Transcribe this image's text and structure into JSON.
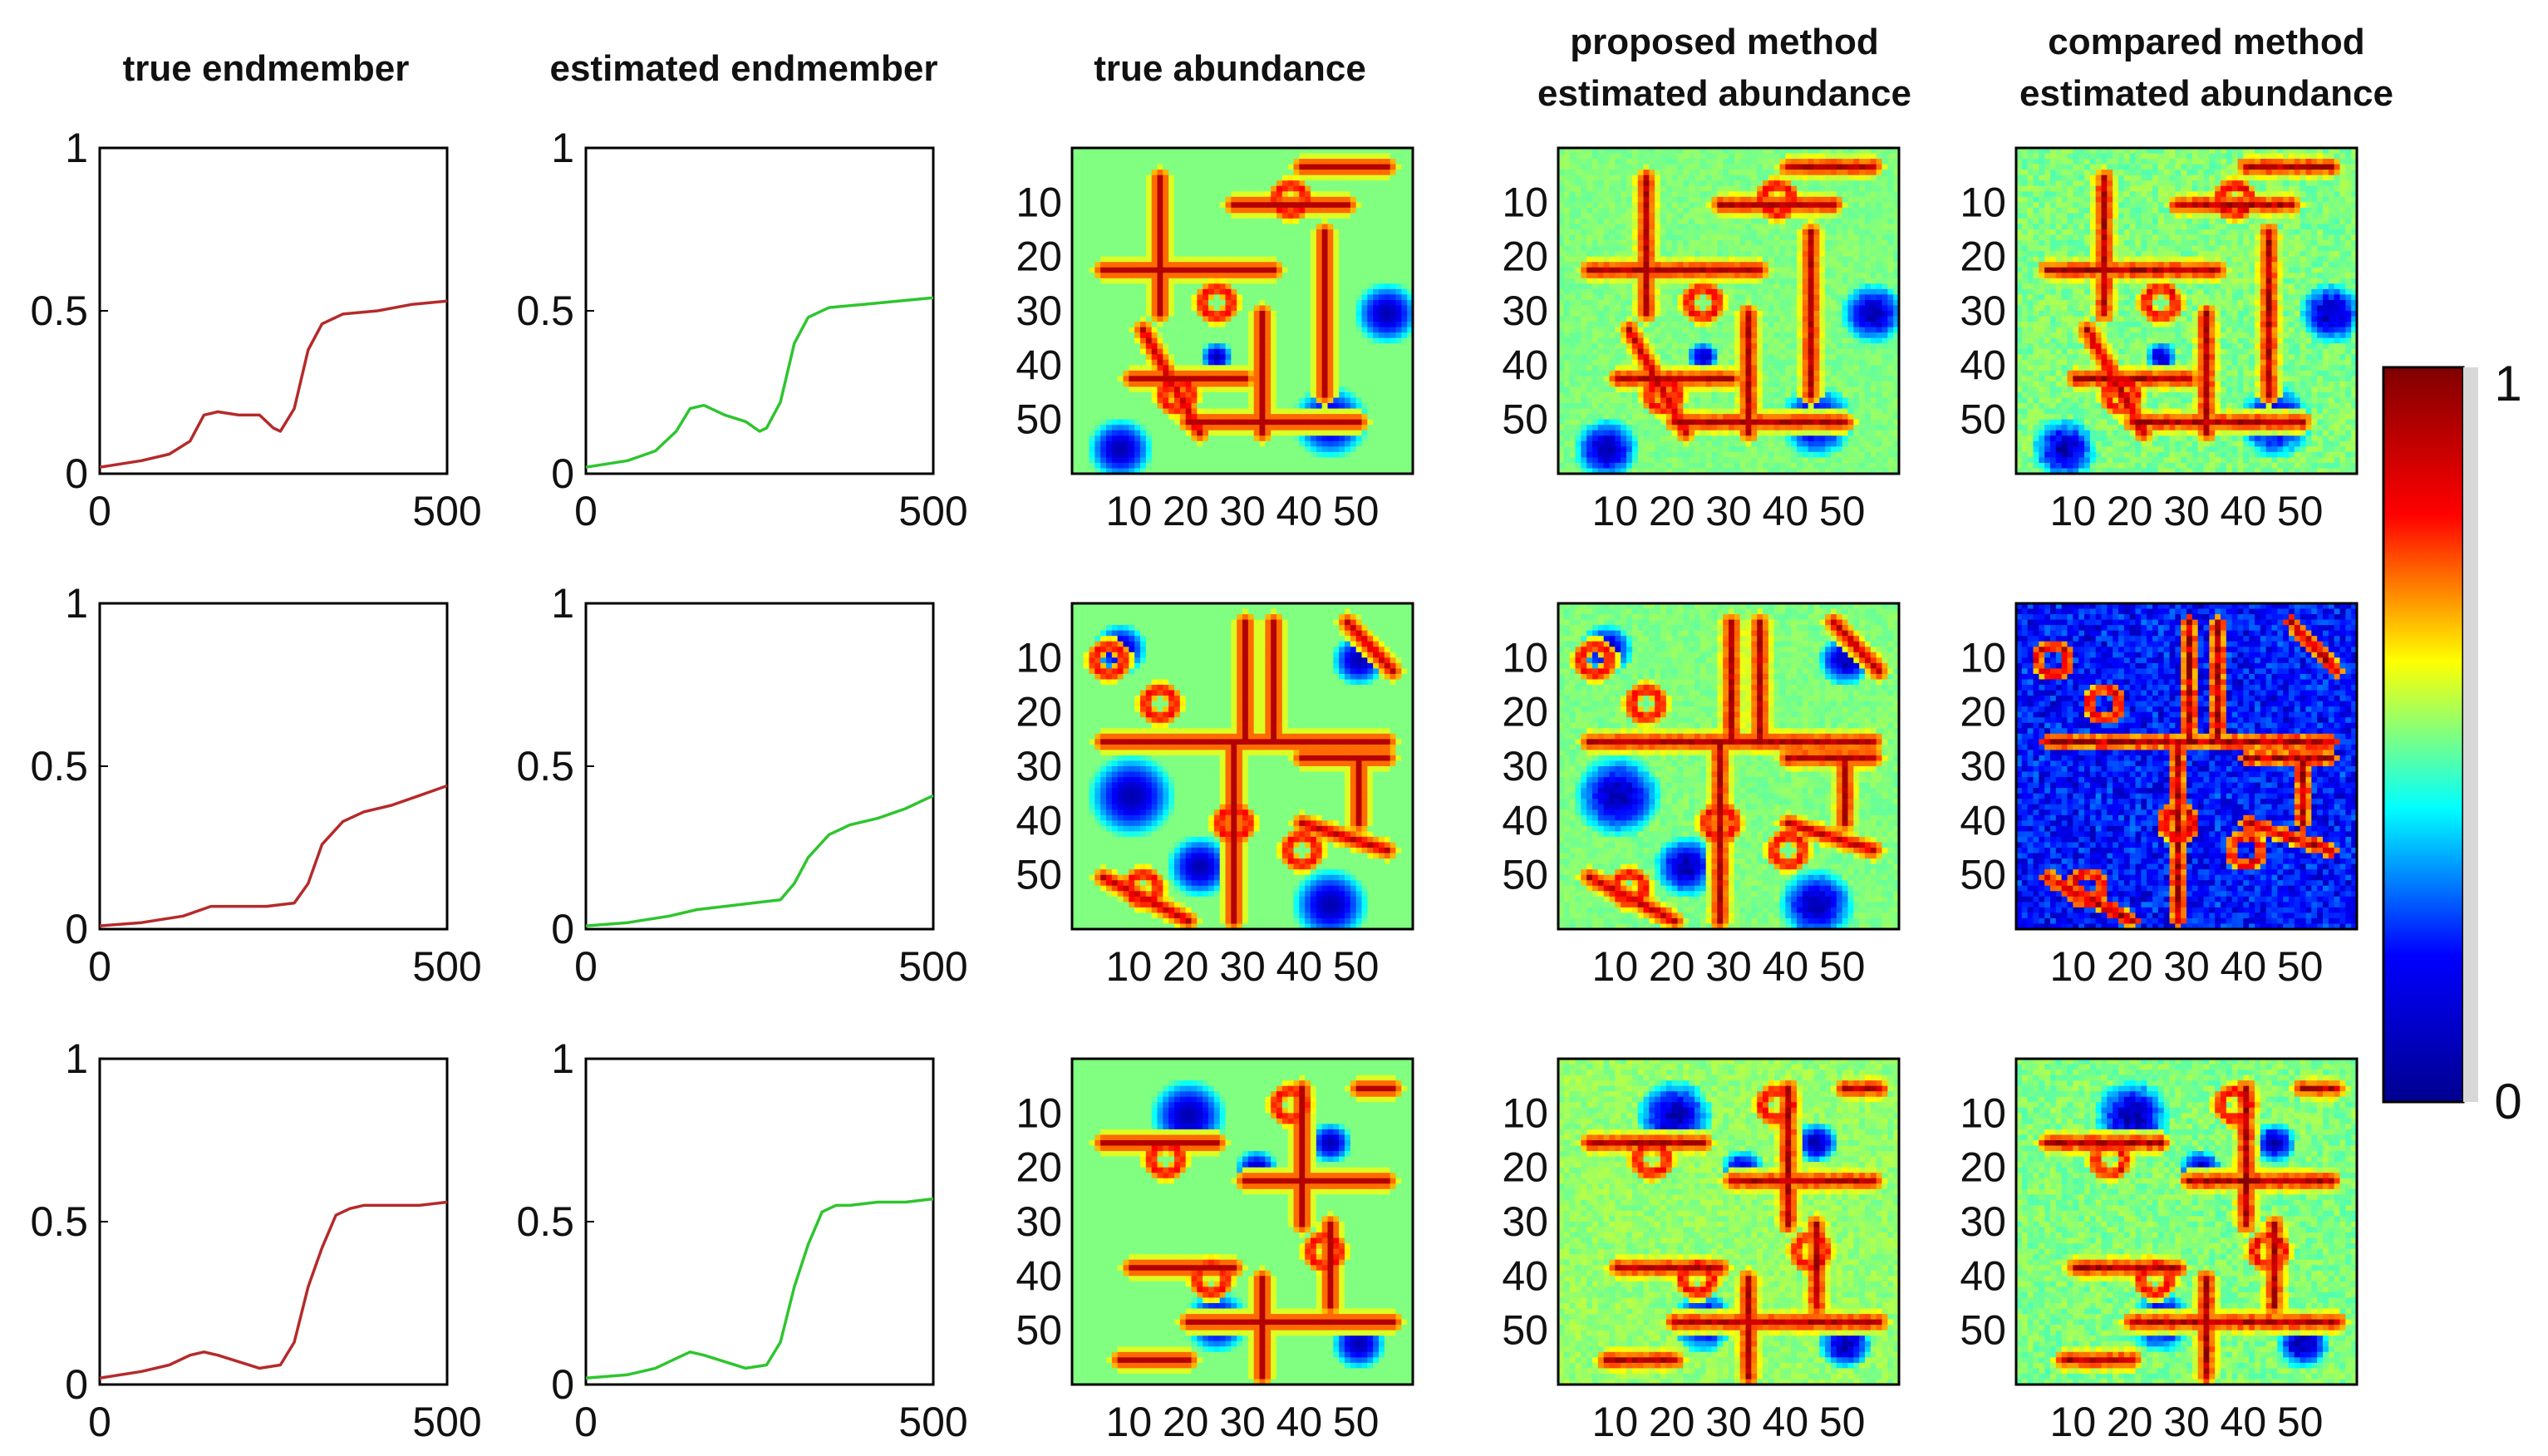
{
  "column_titles": {
    "col1": "true endmember",
    "col2": "estimated endmember",
    "col3": "true abundance",
    "col4_line1": "proposed method",
    "col4_line2": "estimated abundance",
    "col5_line1": "compared method",
    "col5_line2": "estimated abundance"
  },
  "colors": {
    "true_endmember": "#b52a2a",
    "estimated_endmember": "#2ec52e",
    "jet": [
      "#00008f",
      "#0000ff",
      "#00ffff",
      "#ffff00",
      "#ff0000",
      "#800000"
    ]
  },
  "chart_data": {
    "type": "line",
    "endmember_axes": {
      "xlim": [
        0,
        500
      ],
      "ylim": [
        0,
        1
      ],
      "xticks": [
        0,
        500
      ],
      "xtick_labels": [
        "0",
        "500"
      ],
      "yticks": [
        0,
        0.5,
        1
      ],
      "ytick_labels": [
        "0",
        "0.5",
        "1"
      ]
    },
    "endmembers": [
      {
        "row": 1,
        "series": [
          {
            "name": "true endmember",
            "x": [
              0,
              60,
              100,
              130,
              150,
              170,
              200,
              230,
              250,
              260,
              280,
              300,
              320,
              350,
              400,
              450,
              500
            ],
            "y": [
              0.02,
              0.04,
              0.06,
              0.1,
              0.18,
              0.19,
              0.18,
              0.18,
              0.14,
              0.13,
              0.2,
              0.38,
              0.46,
              0.49,
              0.5,
              0.52,
              0.53
            ]
          },
          {
            "name": "estimated endmember",
            "x": [
              0,
              60,
              100,
              130,
              150,
              170,
              200,
              230,
              250,
              260,
              280,
              300,
              320,
              350,
              400,
              450,
              500
            ],
            "y": [
              0.02,
              0.04,
              0.07,
              0.13,
              0.2,
              0.21,
              0.18,
              0.16,
              0.13,
              0.14,
              0.22,
              0.4,
              0.48,
              0.51,
              0.52,
              0.53,
              0.54
            ]
          }
        ]
      },
      {
        "row": 2,
        "series": [
          {
            "name": "true endmember",
            "x": [
              0,
              60,
              120,
              160,
              200,
              240,
              280,
              300,
              320,
              350,
              380,
              420,
              460,
              500
            ],
            "y": [
              0.01,
              0.02,
              0.04,
              0.07,
              0.07,
              0.07,
              0.08,
              0.14,
              0.26,
              0.33,
              0.36,
              0.38,
              0.41,
              0.44
            ]
          },
          {
            "name": "estimated endmember",
            "x": [
              0,
              60,
              120,
              160,
              200,
              240,
              280,
              300,
              320,
              350,
              380,
              420,
              460,
              500
            ],
            "y": [
              0.01,
              0.02,
              0.04,
              0.06,
              0.07,
              0.08,
              0.09,
              0.14,
              0.22,
              0.29,
              0.32,
              0.34,
              0.37,
              0.41
            ]
          }
        ]
      },
      {
        "row": 3,
        "series": [
          {
            "name": "true endmember",
            "x": [
              0,
              60,
              100,
              130,
              150,
              170,
              200,
              230,
              260,
              280,
              300,
              320,
              340,
              360,
              380,
              420,
              460,
              500
            ],
            "y": [
              0.02,
              0.04,
              0.06,
              0.09,
              0.1,
              0.09,
              0.07,
              0.05,
              0.06,
              0.13,
              0.3,
              0.42,
              0.52,
              0.54,
              0.55,
              0.55,
              0.55,
              0.56
            ]
          },
          {
            "name": "estimated endmember",
            "x": [
              0,
              60,
              100,
              130,
              150,
              170,
              200,
              230,
              260,
              280,
              300,
              320,
              340,
              360,
              380,
              420,
              460,
              500
            ],
            "y": [
              0.02,
              0.03,
              0.05,
              0.08,
              0.1,
              0.09,
              0.07,
              0.05,
              0.06,
              0.13,
              0.3,
              0.43,
              0.53,
              0.55,
              0.55,
              0.56,
              0.56,
              0.57
            ]
          }
        ]
      }
    ],
    "abundance_axes": {
      "grid_size": [
        60,
        60
      ],
      "xticks": [
        10,
        20,
        30,
        40,
        50
      ],
      "xtick_labels": [
        "10",
        "20",
        "30",
        "40",
        "50"
      ],
      "yticks": [
        10,
        20,
        30,
        40,
        50
      ],
      "ytick_labels": [
        "10",
        "20",
        "30",
        "40",
        "50"
      ]
    },
    "abundance_maps": [
      {
        "row": 1,
        "panels": [
          {
            "name": "true abundance",
            "pattern": "row1",
            "noise": 0
          },
          {
            "name": "proposed method estimated abundance",
            "pattern": "row1",
            "noise": 0.03
          },
          {
            "name": "compared method estimated abundance",
            "pattern": "row1",
            "noise": 0.05
          }
        ]
      },
      {
        "row": 2,
        "panels": [
          {
            "name": "true abundance",
            "pattern": "row2",
            "noise": 0
          },
          {
            "name": "proposed method estimated abundance",
            "pattern": "row2",
            "noise": 0.03
          },
          {
            "name": "compared method estimated abundance",
            "pattern": "row2-dark",
            "noise": 0.08
          }
        ]
      },
      {
        "row": 3,
        "panels": [
          {
            "name": "true abundance",
            "pattern": "row3",
            "noise": 0
          },
          {
            "name": "proposed method estimated abundance",
            "pattern": "row3-green",
            "noise": 0.04
          },
          {
            "name": "compared method estimated abundance",
            "pattern": "row3",
            "noise": 0.05
          }
        ]
      }
    ],
    "colorbar": {
      "min": 0,
      "max": 1,
      "tick_labels": [
        "0",
        "1"
      ]
    }
  }
}
